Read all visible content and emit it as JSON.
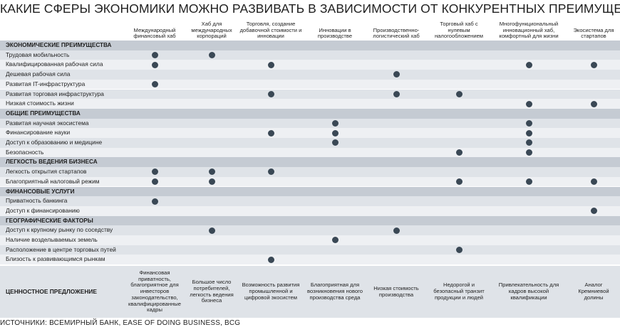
{
  "title": "Какие сферы экономики можно развивать в зависимости от конкурентных преимуществ страны",
  "columns": [
    "Международный финансовый хаб",
    "Хаб для международных корпораций",
    "Торговля, создание добавочной стоимости и инновации",
    "Инновации в производстве",
    "Производственно-логистический хаб",
    "Торговый хаб с нулевым налогообложением",
    "Многофункциональный инновационный хаб, комфортный для жизни",
    "Экосистема для стартапов"
  ],
  "sections": [
    {
      "title": "Экономические преимущества",
      "rows": [
        {
          "label": "Трудовая мобильность",
          "marks": [
            1,
            1,
            0,
            0,
            0,
            0,
            0,
            0
          ]
        },
        {
          "label": "Квалифицированная рабочая сила",
          "marks": [
            1,
            0,
            1,
            0,
            0,
            0,
            1,
            1
          ]
        },
        {
          "label": "Дешевая рабочая сила",
          "marks": [
            0,
            0,
            0,
            0,
            1,
            0,
            0,
            0
          ]
        },
        {
          "label": "Развитая IT-инфраструктура",
          "marks": [
            1,
            0,
            0,
            0,
            0,
            0,
            0,
            0
          ]
        },
        {
          "label": "Развитая торговая инфраструктура",
          "marks": [
            0,
            0,
            1,
            0,
            1,
            1,
            0,
            0
          ]
        },
        {
          "label": "Низкая стоимость жизни",
          "marks": [
            0,
            0,
            0,
            0,
            0,
            0,
            1,
            1
          ]
        }
      ]
    },
    {
      "title": "Общие преимущества",
      "rows": [
        {
          "label": "Развитая научная экосистема",
          "marks": [
            0,
            0,
            0,
            1,
            0,
            0,
            1,
            0
          ]
        },
        {
          "label": "Финансирование науки",
          "marks": [
            0,
            0,
            1,
            1,
            0,
            0,
            1,
            0
          ]
        },
        {
          "label": "Доступ к образованию и медицине",
          "marks": [
            0,
            0,
            0,
            1,
            0,
            0,
            1,
            0
          ]
        },
        {
          "label": "Безопасность",
          "marks": [
            0,
            0,
            0,
            0,
            0,
            1,
            1,
            0
          ]
        }
      ]
    },
    {
      "title": "Легкость ведения бизнеса",
      "rows": [
        {
          "label": "Легкость открытия стартапов",
          "marks": [
            1,
            1,
            1,
            0,
            0,
            0,
            0,
            0
          ]
        },
        {
          "label": "Благоприятный налоговый режим",
          "marks": [
            1,
            1,
            0,
            0,
            0,
            1,
            1,
            1
          ]
        }
      ]
    },
    {
      "title": "Финансовые услуги",
      "rows": [
        {
          "label": "Приватность банкинга",
          "marks": [
            1,
            0,
            0,
            0,
            0,
            0,
            0,
            0
          ]
        },
        {
          "label": "Доступ к финансированию",
          "marks": [
            0,
            0,
            0,
            0,
            0,
            0,
            0,
            1
          ]
        }
      ]
    },
    {
      "title": "Географические факторы",
      "rows": [
        {
          "label": "Доступ к крупному рынку по соседству",
          "marks": [
            0,
            1,
            0,
            0,
            1,
            0,
            0,
            0
          ]
        },
        {
          "label": "Наличие возделываемых земель",
          "marks": [
            0,
            0,
            0,
            1,
            0,
            0,
            0,
            0
          ]
        },
        {
          "label": "Расположение в центре торговых путей",
          "marks": [
            0,
            0,
            0,
            0,
            0,
            1,
            0,
            0
          ]
        },
        {
          "label": "Близость к развивающимся рынкам",
          "marks": [
            0,
            0,
            1,
            0,
            0,
            0,
            0,
            0
          ]
        }
      ]
    }
  ],
  "value_proposition": {
    "label": "Ценностное предложение",
    "cells": [
      "Финансовая приватность, благоприятное для инвесторов законодательство, квалифицированные кадры",
      "Большое число потребителей, легкость ведения бизнеса",
      "Возможность развития промышленной и цифровой экосистем",
      "Благоприятная для возникновения нового производства среда",
      "Низкая стоимость производства",
      "Недорогой и безопасный транзит продукции и людей",
      "Привлекательность для кадров высокой квалификации",
      "Аналог Кремниевой долины"
    ]
  },
  "source": "Источники: Всемирный банк, Ease of Doing Business, BCG",
  "colors": {
    "dot": "#3a4855",
    "row_odd": "#dfe3e8",
    "row_even": "#eef0f3",
    "section_row": "#c5cbd3"
  }
}
